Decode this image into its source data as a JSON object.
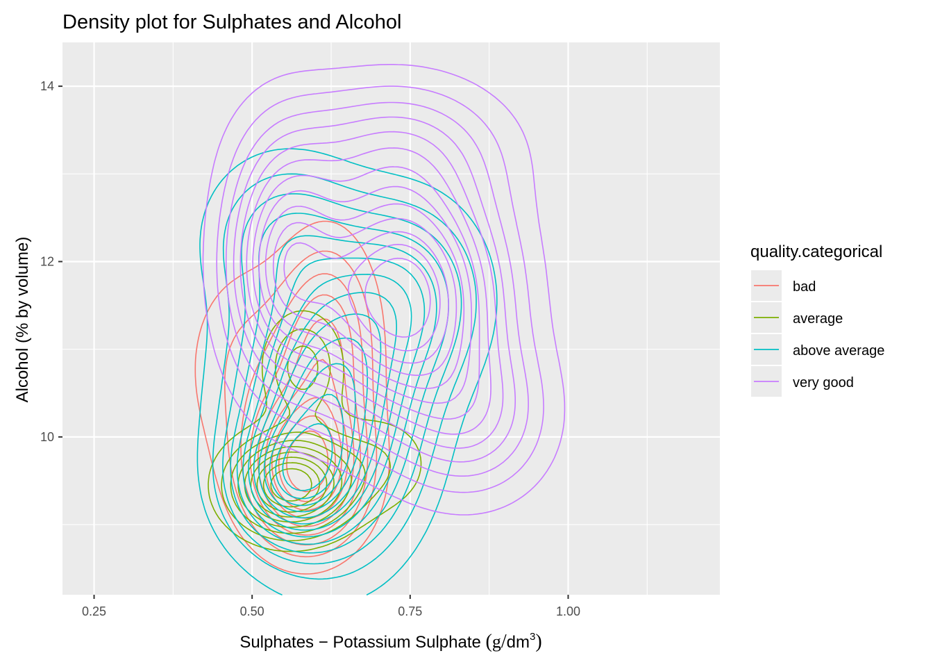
{
  "chart_data": {
    "type": "contour",
    "title": "Density plot for Sulphates and Alcohol",
    "xlabel": "Sulphates − Potassium Sulphate",
    "xlabel_unit": "(g/dm³)",
    "xlabel_unit_parts": {
      "open": "(",
      "num": "g",
      "slash": "/",
      "den": "dm",
      "sup": "3",
      "close": ")"
    },
    "ylabel": "Alcohol (% by volume)",
    "xlim": [
      0.2,
      1.24
    ],
    "ylim": [
      8.2,
      14.5
    ],
    "x_ticks": [
      0.25,
      0.5,
      0.75,
      1.0
    ],
    "x_tick_labels": [
      "0.25",
      "0.50",
      "0.75",
      "1.00"
    ],
    "y_ticks": [
      10,
      12,
      14
    ],
    "y_tick_labels": [
      "10",
      "12",
      "14"
    ],
    "grid": true,
    "background": "#ebebeb",
    "legend": {
      "title": "quality.categorical",
      "position": "right",
      "entries": [
        {
          "label": "bad",
          "color": "#F8766D"
        },
        {
          "label": "average",
          "color": "#7CAE00"
        },
        {
          "label": "above average",
          "color": "#00BFC4"
        },
        {
          "label": "very good",
          "color": "#C77CFF"
        }
      ]
    },
    "series": [
      {
        "name": "bad",
        "color": "#F8766D",
        "peaks": [
          {
            "x": 0.585,
            "y": 9.6,
            "sx": 0.06,
            "sy": 0.55,
            "w": 1.0
          },
          {
            "x": 0.62,
            "y": 11.0,
            "sx": 0.05,
            "sy": 0.8,
            "w": 0.55
          },
          {
            "x": 0.5,
            "y": 10.8,
            "sx": 0.07,
            "sy": 0.8,
            "w": 0.25
          },
          {
            "x": 0.87,
            "y": 9.9,
            "sx": 0.025,
            "sy": 0.3,
            "w": 0.08
          },
          {
            "x": 1.1,
            "y": 9.15,
            "sx": 0.025,
            "sy": 0.25,
            "w": 0.07
          }
        ],
        "levels": 9
      },
      {
        "name": "average",
        "color": "#7CAE00",
        "peaks": [
          {
            "x": 0.56,
            "y": 9.45,
            "sx": 0.06,
            "sy": 0.35,
            "w": 1.0
          },
          {
            "x": 0.58,
            "y": 10.8,
            "sx": 0.04,
            "sy": 0.4,
            "w": 0.35
          },
          {
            "x": 0.7,
            "y": 9.7,
            "sx": 0.06,
            "sy": 0.4,
            "w": 0.18
          }
        ],
        "levels": 9
      },
      {
        "name": "above average",
        "color": "#00BFC4",
        "peaks": [
          {
            "x": 0.62,
            "y": 10.3,
            "sx": 0.09,
            "sy": 1.0,
            "w": 1.0
          },
          {
            "x": 0.56,
            "y": 9.5,
            "sx": 0.06,
            "sy": 0.45,
            "w": 0.6
          },
          {
            "x": 0.74,
            "y": 11.6,
            "sx": 0.08,
            "sy": 0.7,
            "w": 0.45
          },
          {
            "x": 0.55,
            "y": 12.3,
            "sx": 0.08,
            "sy": 0.6,
            "w": 0.3
          }
        ],
        "levels": 13
      },
      {
        "name": "very good",
        "color": "#C77CFF",
        "peaks": [
          {
            "x": 0.735,
            "y": 11.6,
            "sx": 0.1,
            "sy": 0.9,
            "w": 1.0
          },
          {
            "x": 0.55,
            "y": 12.0,
            "sx": 0.06,
            "sy": 0.9,
            "w": 0.6
          },
          {
            "x": 0.72,
            "y": 13.3,
            "sx": 0.12,
            "sy": 0.55,
            "w": 0.25
          },
          {
            "x": 0.85,
            "y": 10.2,
            "sx": 0.08,
            "sy": 0.6,
            "w": 0.3
          }
        ],
        "levels": 13
      }
    ]
  }
}
